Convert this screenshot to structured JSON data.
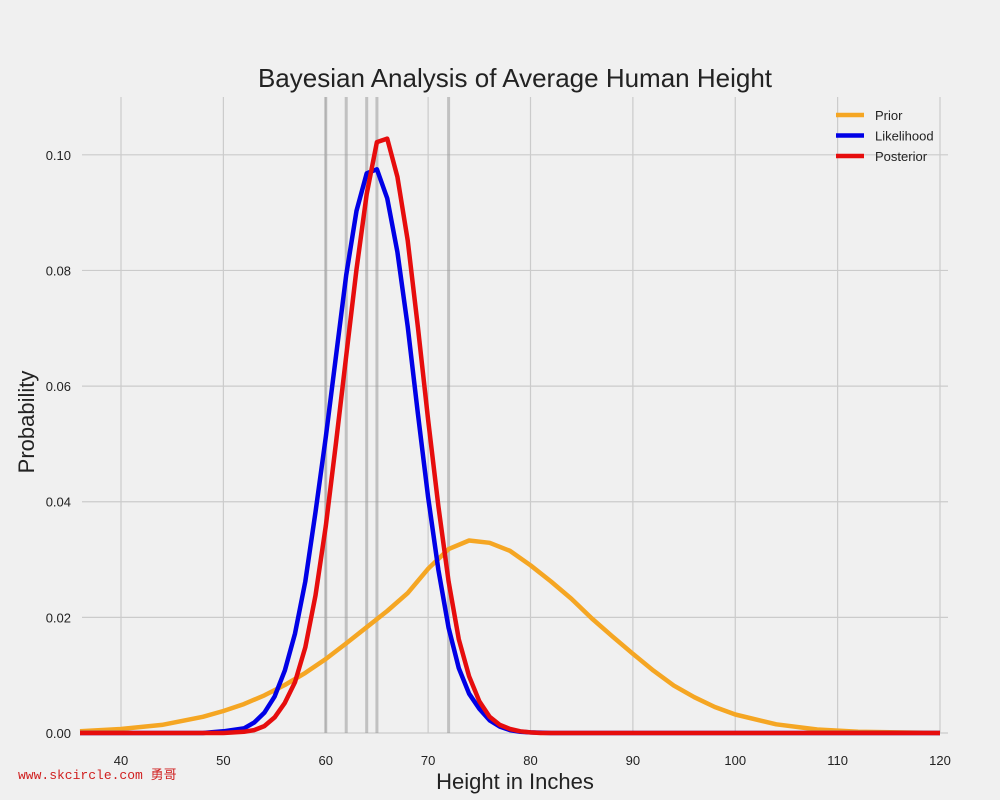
{
  "chart_data": {
    "type": "line",
    "title": "Bayesian Analysis of Average Human Height",
    "xlabel": "Height in Inches",
    "ylabel": "Probability",
    "xlim": [
      36,
      120
    ],
    "ylim": [
      0,
      0.11
    ],
    "xticks": [
      40,
      50,
      60,
      70,
      80,
      90,
      100,
      110,
      120
    ],
    "yticks": [
      0.0,
      0.02,
      0.04,
      0.06,
      0.08,
      0.1
    ],
    "ytick_labels": [
      "0.00",
      "0.02",
      "0.04",
      "0.06",
      "0.08",
      "0.10"
    ],
    "grid": true,
    "legend_position": "top-right",
    "vlines": [
      60,
      62,
      64,
      65,
      72
    ],
    "series": [
      {
        "name": "Prior",
        "color": "#f5a623",
        "x": [
          36,
          40,
          44,
          48,
          50,
          52,
          54,
          56,
          58,
          60,
          62,
          64,
          66,
          68,
          70,
          72,
          74,
          76,
          78,
          80,
          82,
          84,
          86,
          88,
          90,
          92,
          94,
          96,
          98,
          100,
          104,
          108,
          112,
          116,
          120
        ],
        "y": [
          0.0003,
          0.0007,
          0.0014,
          0.0028,
          0.0038,
          0.005,
          0.0065,
          0.0083,
          0.0104,
          0.0128,
          0.0155,
          0.0183,
          0.0211,
          0.0242,
          0.0284,
          0.0318,
          0.0333,
          0.0329,
          0.0315,
          0.029,
          0.0262,
          0.0232,
          0.0198,
          0.0167,
          0.0137,
          0.0108,
          0.0082,
          0.0062,
          0.0045,
          0.0032,
          0.0015,
          0.0006,
          0.0002,
          0.0001,
          0.0
        ]
      },
      {
        "name": "Likelihood",
        "color": "#0000e6",
        "x": [
          36,
          48,
          50,
          52,
          53,
          54,
          55,
          56,
          57,
          58,
          59,
          60,
          61,
          62,
          63,
          64,
          65,
          66,
          67,
          68,
          69,
          70,
          71,
          72,
          73,
          74,
          75,
          76,
          77,
          78,
          79,
          80,
          82,
          86,
          120
        ],
        "y": [
          0.0,
          0.0,
          0.0003,
          0.0008,
          0.0018,
          0.0035,
          0.0063,
          0.0108,
          0.0172,
          0.0262,
          0.0382,
          0.0512,
          0.0652,
          0.0792,
          0.0903,
          0.0968,
          0.0975,
          0.0925,
          0.0832,
          0.0703,
          0.0552,
          0.0408,
          0.0282,
          0.0182,
          0.0112,
          0.0068,
          0.0042,
          0.0022,
          0.0011,
          0.0005,
          0.0002,
          0.0001,
          0.0,
          0.0,
          0.0
        ]
      },
      {
        "name": "Posterior",
        "color": "#e60d0d",
        "x": [
          36,
          50,
          52,
          53,
          54,
          55,
          56,
          57,
          58,
          59,
          60,
          61,
          62,
          63,
          64,
          65,
          66,
          67,
          68,
          69,
          70,
          71,
          72,
          73,
          74,
          75,
          76,
          77,
          78,
          79,
          80,
          81,
          82,
          86,
          120
        ],
        "y": [
          0.0,
          0.0,
          0.0002,
          0.0005,
          0.0012,
          0.0027,
          0.0052,
          0.0088,
          0.0148,
          0.0238,
          0.0358,
          0.0502,
          0.0652,
          0.0802,
          0.0932,
          0.1022,
          0.1028,
          0.0962,
          0.0852,
          0.0702,
          0.0542,
          0.0392,
          0.0262,
          0.0162,
          0.0098,
          0.0055,
          0.0028,
          0.0014,
          0.0007,
          0.0003,
          0.0001,
          0.0,
          0.0,
          0.0,
          0.0
        ]
      }
    ]
  },
  "watermark": "www.skcircle.com 勇哥"
}
